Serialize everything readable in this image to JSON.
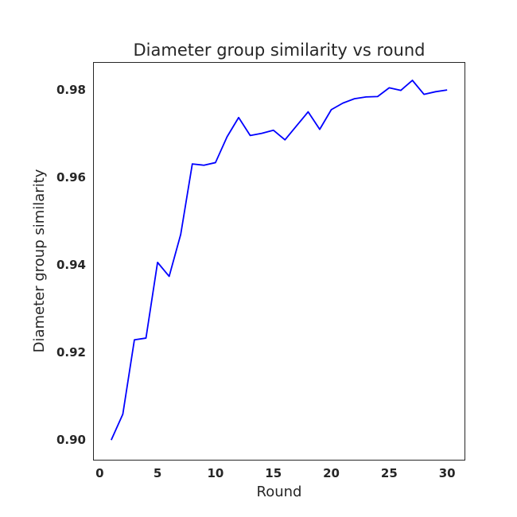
{
  "chart_data": {
    "type": "line",
    "title": "Diameter group similarity vs round",
    "xlabel": "Round",
    "ylabel": "Diameter group similarity",
    "xlim": [
      -0.5,
      31.5
    ],
    "ylim": [
      0.8955,
      0.9862
    ],
    "xticks": [
      0,
      5,
      10,
      15,
      20,
      25,
      30
    ],
    "xtick_labels": [
      "0",
      "5",
      "10",
      "15",
      "20",
      "25",
      "30"
    ],
    "yticks": [
      0.9,
      0.92,
      0.94,
      0.96,
      0.98
    ],
    "ytick_labels": [
      "0.90",
      "0.92",
      "0.94",
      "0.96",
      "0.98"
    ],
    "grid": false,
    "legend": "none",
    "series": [
      {
        "color": "#0000ff",
        "x": [
          1,
          2,
          3,
          4,
          5,
          6,
          7,
          8,
          9,
          10,
          11,
          12,
          13,
          14,
          15,
          16,
          17,
          18,
          19,
          20,
          21,
          22,
          23,
          24,
          25,
          26,
          27,
          28,
          29,
          30
        ],
        "y": [
          0.9,
          0.9059,
          0.9229,
          0.9233,
          0.9406,
          0.9374,
          0.947,
          0.9631,
          0.9628,
          0.9634,
          0.9693,
          0.9737,
          0.9696,
          0.9701,
          0.9708,
          0.9686,
          0.9718,
          0.975,
          0.971,
          0.9755,
          0.977,
          0.978,
          0.9784,
          0.9785,
          0.9805,
          0.9799,
          0.9822,
          0.979,
          0.9796,
          0.98
        ]
      }
    ]
  }
}
